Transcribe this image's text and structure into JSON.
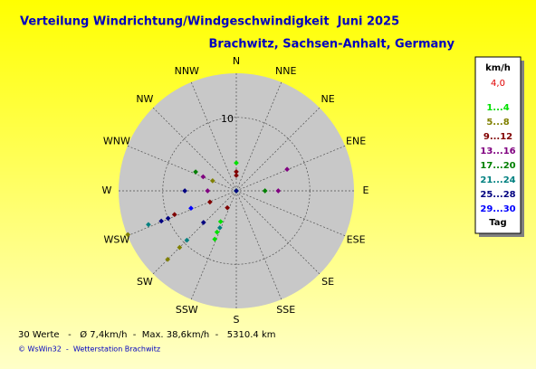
{
  "chart_data": {
    "type": "polar-scatter",
    "title": "Verteilung Windrichtung/Windgeschwindigkeit  Juni 2025",
    "subtitle": "Brachwitz, Sachsen-Anhalt, Germany",
    "directions": [
      "N",
      "NNE",
      "NE",
      "ENE",
      "E",
      "ESE",
      "SE",
      "SSE",
      "S",
      "SSW",
      "SW",
      "WSW",
      "W",
      "WNW",
      "NW",
      "NNW"
    ],
    "rlim": [
      0,
      16
    ],
    "rticks": [
      10
    ],
    "legend": {
      "unit": "km/h",
      "current": "4,0",
      "footer": "Tag"
    },
    "series": [
      {
        "name": "1...4",
        "color": "#00e000",
        "dir": [
          0,
          207,
          205,
          204,
          0
        ],
        "speed": [
          3.8,
          4.7,
          6.2,
          7.2,
          0
        ]
      },
      {
        "name": "5...8",
        "color": "#808000",
        "dir": [
          293,
          248,
          225,
          225
        ],
        "speed": [
          3.5,
          15.9,
          10.9,
          13.2
        ]
      },
      {
        "name": "9...12",
        "color": "#800000",
        "dir": [
          0,
          0,
          247,
          249,
          208
        ],
        "speed": [
          2.6,
          2.1,
          3.9,
          9.0,
          2.6
        ]
      },
      {
        "name": "13...16",
        "color": "#800080",
        "dir": [
          67,
          90,
          293,
          270
        ],
        "speed": [
          7.5,
          5.7,
          4.9,
          3.9
        ]
      },
      {
        "name": "17...20",
        "color": "#008000",
        "dir": [
          90,
          295
        ],
        "speed": [
          3.9,
          6.1
        ]
      },
      {
        "name": "21...24",
        "color": "#008080",
        "dir": [
          249,
          225,
          204,
          0
        ],
        "speed": [
          12.8,
          9.5,
          5.5,
          0
        ]
      },
      {
        "name": "25...28",
        "color": "#000080",
        "dir": [
          270,
          248,
          248,
          226,
          0
        ],
        "speed": [
          7.0,
          10.0,
          11.0,
          6.2,
          0
        ]
      },
      {
        "name": "29...30",
        "color": "#0000ff",
        "dir": [
          249
        ],
        "speed": [
          6.6
        ]
      }
    ],
    "summary": "30 Werte   -   Ø 7,4km/h  -  Max. 38,6km/h  -   5310.4 km",
    "credit": "© WsWin32  -  Wetterstation Brachwitz"
  }
}
